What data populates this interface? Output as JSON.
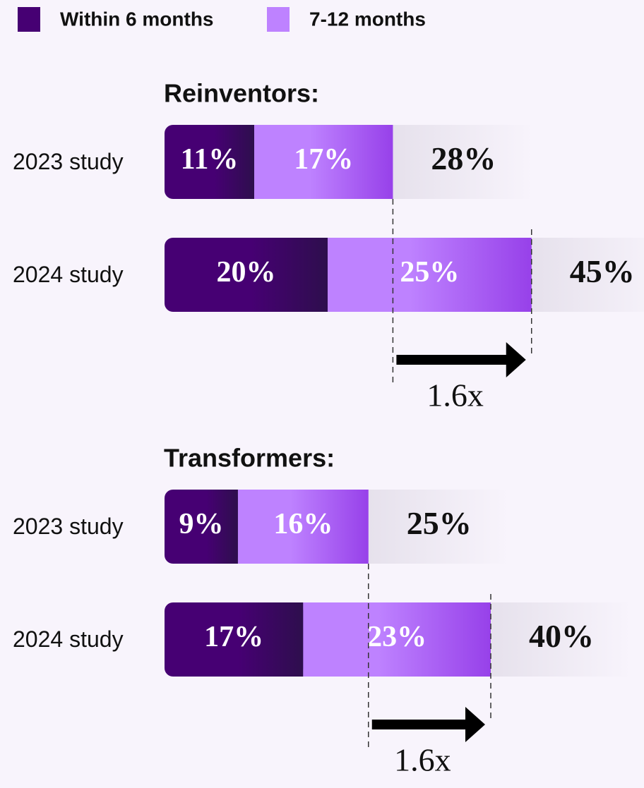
{
  "chart_data": [
    {
      "type": "stacked-bar",
      "title": "Reinventors:",
      "categories": [
        "2023 study",
        "2024 study"
      ],
      "series": [
        {
          "name": "Within 6 months",
          "color": "#460073",
          "values": [
            11,
            20
          ],
          "value_labels": [
            "11%",
            "20%"
          ]
        },
        {
          "name": "7-12 months",
          "color": "#be82ff",
          "values": [
            17,
            25
          ],
          "value_labels": [
            "17%",
            "25%"
          ]
        }
      ],
      "totals": [
        28,
        45
      ],
      "total_labels": [
        "28%",
        "45%"
      ],
      "annotation": "1.6x"
    },
    {
      "type": "stacked-bar",
      "title": "Transformers:",
      "categories": [
        "2023 study",
        "2024 study"
      ],
      "series": [
        {
          "color": "#460073",
          "values": [
            9,
            17
          ],
          "value_labels": [
            "9%",
            "17%"
          ]
        },
        {
          "color": "#be82ff",
          "values": [
            16,
            23
          ],
          "value_labels": [
            "16%",
            "23%"
          ]
        }
      ],
      "totals": [
        25,
        40
      ],
      "total_labels": [
        "25%",
        "40%"
      ],
      "annotation": "1.6x"
    }
  ]
}
